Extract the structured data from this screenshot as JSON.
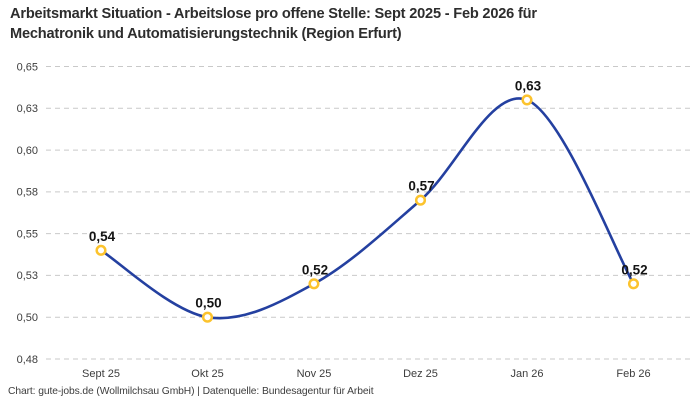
{
  "header": {
    "title_lines": [
      "Arbeitsmarkt Situation - Arbeitslose pro offene Stelle: Sept 2025 - Feb 2026 für",
      "Mechatronik und Automatisierungstechnik (Region Erfurt)"
    ]
  },
  "footer": {
    "credit": "Chart: gute-jobs.de (Wollmilchsau GmbH) | Datenquelle: Bundesagentur für Arbeit"
  },
  "chart_data": {
    "type": "line",
    "title": "Arbeitsmarkt Situation - Arbeitslose pro offene Stelle: Sept 2025 - Feb 2026 für Mechatronik und Automatisierungstechnik (Region Erfurt)",
    "categories": [
      "Sept 25",
      "Okt 25",
      "Nov 25",
      "Dez 25",
      "Jan 26",
      "Feb 26"
    ],
    "series": [
      {
        "name": "Arbeitslose pro offene Stelle",
        "values": [
          0.54,
          0.5,
          0.52,
          0.57,
          0.63,
          0.52
        ],
        "value_labels": [
          "0,54",
          "0,50",
          "0,52",
          "0,57",
          "0,63",
          "0,52"
        ]
      }
    ],
    "xlabel": "",
    "ylabel": "",
    "ylim": [
      0.475,
      0.65
    ],
    "y_ticks": [
      {
        "value": 0.475,
        "label": "0,48"
      },
      {
        "value": 0.5,
        "label": "0,50"
      },
      {
        "value": 0.525,
        "label": "0,53"
      },
      {
        "value": 0.55,
        "label": "0,55"
      },
      {
        "value": 0.575,
        "label": "0,58"
      },
      {
        "value": 0.6,
        "label": "0,60"
      },
      {
        "value": 0.625,
        "label": "0,63"
      },
      {
        "value": 0.65,
        "label": "0,65"
      }
    ],
    "grid": "dashed horizontal",
    "legend": "none",
    "curve": "smooth",
    "colors": {
      "line": "#2440a0",
      "marker_ring": "#fcc32d",
      "marker_fill": "#ffffff",
      "grid": "#c9c9c9",
      "tick_label": "#3d3d3d",
      "value_label": "#141414",
      "title": "#2d2d2d",
      "background": "#ffffff"
    }
  }
}
